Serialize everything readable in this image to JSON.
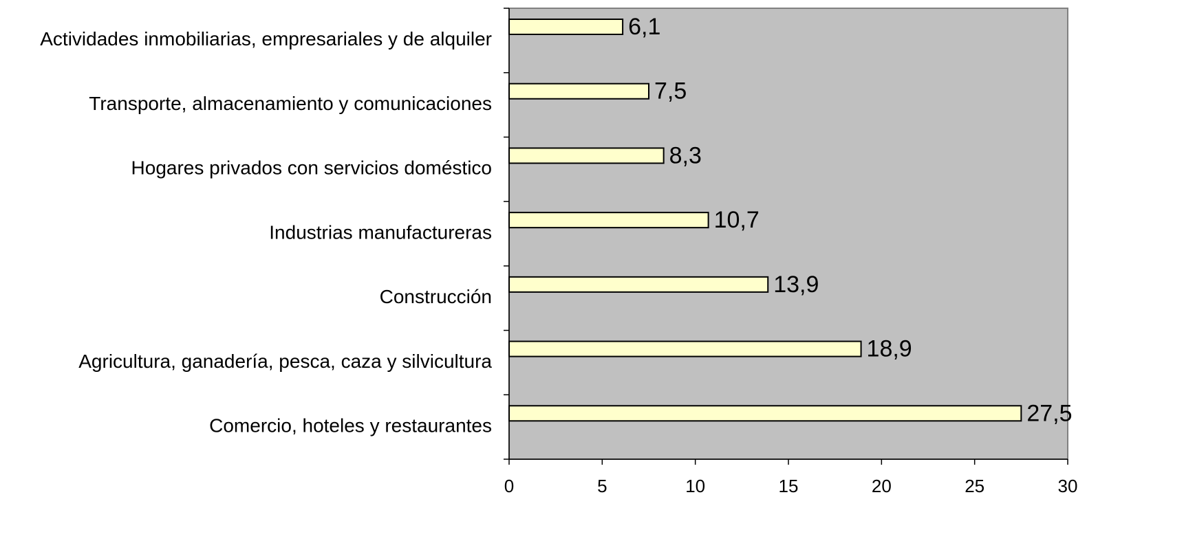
{
  "chart_data": {
    "type": "bar",
    "orientation": "horizontal",
    "categories": [
      "Actividades inmobiliarias, empresariales y de alquiler",
      "Transporte, almacenamiento y comunicaciones",
      "Hogares privados con servicios doméstico",
      "Industrias manufactureras",
      "Construcción",
      "Agricultura, ganadería, pesca, caza y silvicultura",
      "Comercio, hoteles y restaurantes"
    ],
    "values": [
      6.1,
      7.5,
      8.3,
      10.7,
      13.9,
      18.9,
      27.5
    ],
    "value_labels": [
      "6,1",
      "7,5",
      "8,3",
      "10,7",
      "13,9",
      "18,9",
      "27,5"
    ],
    "color": "#ffffcc",
    "plot_background": "#c0c0c0",
    "xlim": [
      0,
      30
    ],
    "xticks": [
      0,
      5,
      10,
      15,
      20,
      25,
      30
    ],
    "grid": false
  }
}
